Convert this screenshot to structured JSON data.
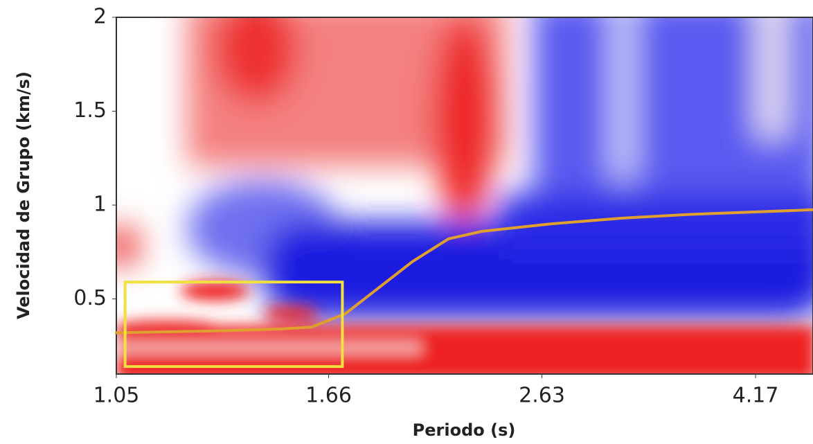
{
  "chart_data": {
    "type": "line",
    "xlabel": "Periodo (s)",
    "ylabel": "Velocidad de Grupo (km/s)",
    "log_x": true,
    "xlim": [
      1.05,
      4.72
    ],
    "xticks": [
      1.05,
      1.66,
      2.63,
      4.17
    ],
    "ylim": [
      0.1,
      2
    ],
    "yticks": [
      {
        "value": 0.5,
        "label": "0.5"
      },
      1,
      1.5,
      2
    ],
    "x": [
      1.05,
      1.3,
      1.5,
      1.6,
      1.72,
      1.85,
      1.99,
      2.15,
      2.31,
      2.68,
      3.12,
      3.61,
      4.72
    ],
    "values": [
      0.32,
      0.33,
      0.34,
      0.35,
      0.42,
      0.56,
      0.7,
      0.82,
      0.86,
      0.9,
      0.93,
      0.95,
      0.975
    ],
    "color": "#e0a030",
    "highlight": {
      "xlim": [
        1.07,
        1.71
      ],
      "ylim": [
        0.14,
        0.59
      ],
      "color": "#f0e040"
    }
  }
}
